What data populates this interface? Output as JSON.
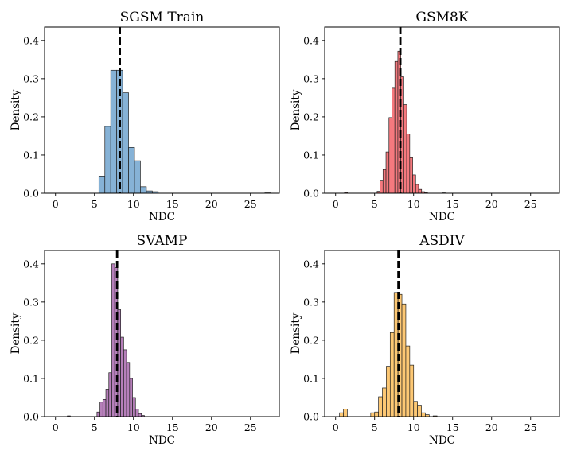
{
  "chart_data": [
    {
      "type": "bar",
      "title": "SGSM Train",
      "xlabel": "NDC",
      "ylabel": "Density",
      "xlim": [
        -1.4,
        28.7
      ],
      "ylim": [
        0,
        0.435
      ],
      "xticks": [
        0,
        5,
        10,
        15,
        20,
        25
      ],
      "yticks": [
        0.0,
        0.1,
        0.2,
        0.3,
        0.4
      ],
      "ytick_labels": [
        "0.0",
        "0.1",
        "0.2",
        "0.3",
        "0.4"
      ],
      "bin_width": 0.76,
      "bar_color": "#86b2d6",
      "mean_line": 8.25,
      "bins": [
        [
          5.57,
          0.045
        ],
        [
          6.33,
          0.175
        ],
        [
          7.09,
          0.322
        ],
        [
          7.85,
          0.322
        ],
        [
          8.61,
          0.263
        ],
        [
          9.37,
          0.12
        ],
        [
          10.13,
          0.085
        ],
        [
          10.89,
          0.017
        ],
        [
          11.65,
          0.006
        ],
        [
          12.41,
          0.004
        ],
        [
          26.85,
          0.001
        ]
      ]
    },
    {
      "type": "bar",
      "title": "GSM8K",
      "xlabel": "NDC",
      "ylabel": "Density",
      "xlim": [
        -1.4,
        28.7
      ],
      "ylim": [
        0,
        0.435
      ],
      "xticks": [
        0,
        5,
        10,
        15,
        20,
        25
      ],
      "yticks": [
        0.0,
        0.1,
        0.2,
        0.3,
        0.4
      ],
      "ytick_labels": [
        "0.0",
        "0.1",
        "0.2",
        "0.3",
        "0.4"
      ],
      "bin_width": 0.38,
      "bar_color": "#f5797e",
      "mean_line": 8.3,
      "bins": [
        [
          1.14,
          0.002
        ],
        [
          5.32,
          0.005
        ],
        [
          5.7,
          0.032
        ],
        [
          6.08,
          0.062
        ],
        [
          6.46,
          0.108
        ],
        [
          6.84,
          0.198
        ],
        [
          7.22,
          0.275
        ],
        [
          7.6,
          0.345
        ],
        [
          7.98,
          0.372
        ],
        [
          8.36,
          0.305
        ],
        [
          8.74,
          0.232
        ],
        [
          9.12,
          0.155
        ],
        [
          9.5,
          0.093
        ],
        [
          9.88,
          0.048
        ],
        [
          10.26,
          0.023
        ],
        [
          10.64,
          0.01
        ],
        [
          11.02,
          0.004
        ],
        [
          11.4,
          0.002
        ],
        [
          13.68,
          0.001
        ]
      ]
    },
    {
      "type": "bar",
      "title": "SVAMP",
      "xlabel": "NDC",
      "ylabel": "Density",
      "xlim": [
        -1.4,
        28.7
      ],
      "ylim": [
        0,
        0.435
      ],
      "xticks": [
        0,
        5,
        10,
        15,
        20,
        25
      ],
      "yticks": [
        0.0,
        0.1,
        0.2,
        0.3,
        0.4
      ],
      "ytick_labels": [
        "0.0",
        "0.1",
        "0.2",
        "0.3",
        "0.4"
      ],
      "bin_width": 0.38,
      "bar_color": "#b67fba",
      "mean_line": 7.9,
      "bins": [
        [
          1.52,
          0.002
        ],
        [
          5.32,
          0.012
        ],
        [
          5.7,
          0.038
        ],
        [
          6.08,
          0.045
        ],
        [
          6.46,
          0.072
        ],
        [
          6.84,
          0.115
        ],
        [
          7.22,
          0.4
        ],
        [
          7.6,
          0.39
        ],
        [
          7.98,
          0.28
        ],
        [
          8.36,
          0.208
        ],
        [
          8.74,
          0.175
        ],
        [
          9.12,
          0.142
        ],
        [
          9.5,
          0.1
        ],
        [
          9.88,
          0.05
        ],
        [
          10.26,
          0.02
        ],
        [
          10.64,
          0.008
        ],
        [
          11.02,
          0.003
        ]
      ]
    },
    {
      "type": "bar",
      "title": "ASDIV",
      "xlabel": "NDC",
      "ylabel": "Density",
      "xlim": [
        -1.4,
        28.7
      ],
      "ylim": [
        0,
        0.435
      ],
      "xticks": [
        0,
        5,
        10,
        15,
        20,
        25
      ],
      "yticks": [
        0.0,
        0.1,
        0.2,
        0.3,
        0.4
      ],
      "ytick_labels": [
        "0.0",
        "0.1",
        "0.2",
        "0.3",
        "0.4"
      ],
      "bin_width": 0.5,
      "bar_color": "#fdc874",
      "mean_line": 8.05,
      "bins": [
        [
          0.5,
          0.01
        ],
        [
          1.0,
          0.02
        ],
        [
          4.5,
          0.01
        ],
        [
          5.0,
          0.012
        ],
        [
          5.5,
          0.052
        ],
        [
          6.0,
          0.075
        ],
        [
          6.5,
          0.132
        ],
        [
          7.0,
          0.22
        ],
        [
          7.5,
          0.325
        ],
        [
          8.0,
          0.32
        ],
        [
          8.5,
          0.295
        ],
        [
          9.0,
          0.185
        ],
        [
          9.5,
          0.135
        ],
        [
          10.0,
          0.04
        ],
        [
          10.5,
          0.03
        ],
        [
          11.0,
          0.01
        ],
        [
          11.5,
          0.005
        ],
        [
          12.5,
          0.002
        ]
      ]
    }
  ]
}
